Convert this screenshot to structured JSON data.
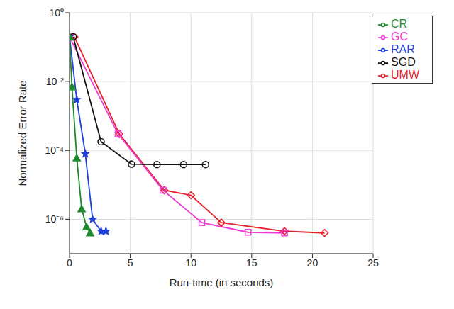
{
  "chart_data": {
    "type": "line",
    "x_label": "Run-time (in seconds)",
    "y_label": "Normalized Error Rate",
    "log": "y",
    "grid": true,
    "legend": "top-right",
    "xlim": [
      0,
      25
    ],
    "xticks": [
      0,
      5,
      10,
      15,
      20,
      25
    ],
    "ylim": [
      1e-07,
      1
    ],
    "yticks": [
      {
        "value": 1,
        "label": "10⁰"
      },
      {
        "value": 0.01,
        "label": "10⁻²"
      },
      {
        "value": 0.0001,
        "label": "10⁻⁴"
      },
      {
        "value": 1e-06,
        "label": "10⁻⁶"
      }
    ],
    "series": [
      {
        "name": "UMW",
        "color": "#e8202a",
        "marker": "diamond",
        "x": [
          0.4,
          4.1,
          7.8,
          10,
          12.5,
          17.7,
          21
        ],
        "values": [
          0.2,
          0.0003,
          7e-06,
          5e-06,
          8e-07,
          4.5e-07,
          4e-07
        ]
      },
      {
        "name": "GC",
        "color": "#ee3bd6",
        "marker": "square",
        "x": [
          0,
          4,
          7.7,
          10.9,
          14.7,
          17.7
        ],
        "values": [
          0.2,
          0.0003,
          7e-06,
          8e-07,
          4.2e-07,
          4e-07
        ]
      },
      {
        "name": "RAR",
        "color": "#1f3fd8",
        "marker": "star",
        "x": [
          0,
          0.6,
          1.3,
          1.9,
          2.6,
          3
        ],
        "values": [
          0.2,
          0.003,
          8e-05,
          1e-06,
          4.5e-07,
          4.5e-07
        ]
      },
      {
        "name": "SGD",
        "color": "#111111",
        "marker": "circle",
        "x": [
          0.3,
          2.6,
          5.1,
          7.2,
          9.4,
          11.2
        ],
        "values": [
          0.2,
          0.00018,
          4e-05,
          3.9e-05,
          3.9e-05,
          3.9e-05
        ]
      },
      {
        "name": "CR",
        "color": "#1e8a2e",
        "marker": "triangle",
        "x": [
          0,
          0.2,
          0.6,
          1,
          1.4,
          1.7
        ],
        "values": [
          0.2,
          0.007,
          6e-05,
          2e-06,
          6e-07,
          4e-07
        ]
      }
    ]
  }
}
